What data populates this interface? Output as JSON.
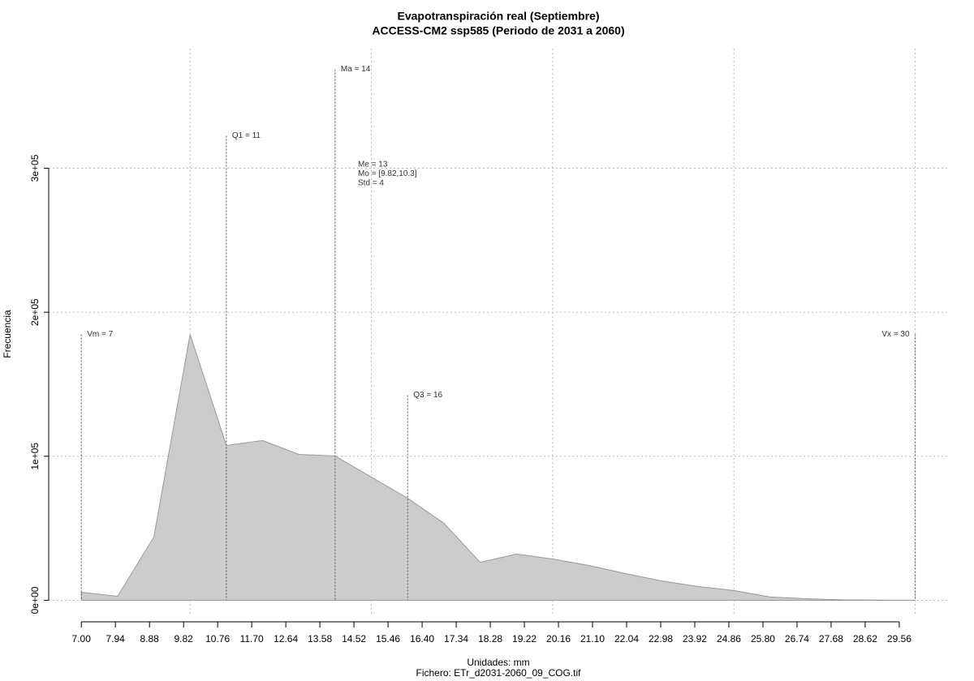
{
  "chart_data": {
    "type": "area",
    "title": "Evapotranspiración real (Septiembre)",
    "subtitle": "ACCESS-CM2 ssp585 (Periodo de 2031 a 2060)",
    "xlabel": "Unidades: mm",
    "caption": "Fichero: ETr_d2031-2060_09_COG.tif",
    "ylabel": "Frecuencia",
    "x": [
      7,
      8,
      9,
      10,
      11,
      12,
      13,
      14,
      15,
      16,
      17,
      18,
      19,
      20,
      21,
      22,
      23,
      24,
      25,
      26,
      27,
      28,
      29,
      30
    ],
    "values": [
      5600,
      2800,
      43900,
      184600,
      107500,
      110900,
      101300,
      100200,
      85500,
      70900,
      53500,
      26400,
      32100,
      28700,
      24200,
      18600,
      13500,
      9600,
      6800,
      2300,
      1100,
      300,
      100,
      50
    ],
    "color": "#cccccc",
    "xlim": [
      6.1,
      30.95
    ],
    "ylim": [
      -11000,
      383000
    ],
    "xticks": [
      {
        "value": 7,
        "label": "7.00"
      },
      7.94,
      8.88,
      9.82,
      10.76,
      {
        "value": 11.7,
        "label": "11.70"
      },
      12.64,
      13.58,
      14.52,
      15.46,
      {
        "value": 16.4,
        "label": "16.40"
      },
      17.34,
      18.28,
      19.22,
      20.16,
      {
        "value": 21.1,
        "label": "21.10"
      },
      22.04,
      22.98,
      23.92,
      24.86,
      {
        "value": 25.8,
        "label": "25.80"
      },
      26.74,
      27.68,
      28.62,
      29.56
    ],
    "yticks": [
      {
        "value": 0,
        "label": "0e+00"
      },
      {
        "value": 100000,
        "label": "1e+05"
      },
      {
        "value": 200000,
        "label": "2e+05"
      },
      {
        "value": 300000,
        "label": "3e+05"
      }
    ],
    "xgrid": [
      10,
      15,
      20,
      25,
      30
    ],
    "grid": true,
    "stats": [
      {
        "label": "Vm = 7",
        "x": 7,
        "y": 184600
      },
      {
        "label": "Q1 = 11",
        "x": 11,
        "y": 322500
      },
      {
        "label": "Ma = 14",
        "x": 14,
        "y": 368600
      },
      {
        "label": "Q3 = 16",
        "x": 16,
        "y": 142400
      },
      {
        "label": "Vx = 30",
        "x": 30,
        "y": 184600
      }
    ],
    "summary": [
      "Me = 13",
      "Mo = [9.82,10.3]",
      "Std = 4"
    ]
  }
}
